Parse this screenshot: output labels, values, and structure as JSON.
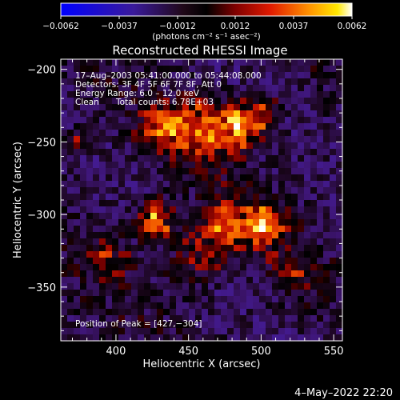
{
  "chart_data": {
    "type": "heatmap",
    "title": "Reconstructed RHESSI Image",
    "xlabel": "Heliocentric X (arcsec)",
    "ylabel": "Heliocentric Y (arcsec)",
    "xlim": [
      362,
      556
    ],
    "ylim": [
      -387,
      -193
    ],
    "x_ticks": [
      400,
      450,
      500,
      550
    ],
    "y_ticks": [
      -200,
      -250,
      -300,
      -350
    ],
    "x_tick_labels": [
      "400",
      "450",
      "500",
      "550"
    ],
    "y_tick_labels": [
      "−200",
      "−250",
      "−300",
      "−350"
    ],
    "colorbar": {
      "range": [
        -0.0062,
        0.0062
      ],
      "tick_labels": [
        "−0.0062",
        "−0.0037",
        "−0.0012",
        "0.0012",
        "0.0037",
        "0.0062"
      ],
      "unit_text": "(photons cm⁻² s⁻¹ asec⁻²)",
      "palette": [
        "#0000ff",
        "#4a1a8a",
        "#1a0a14",
        "#000000",
        "#8a0000",
        "#e01a00",
        "#ff8a00",
        "#ffe000",
        "#ffffff"
      ]
    },
    "sources": [
      {
        "x": 427,
        "y": -304,
        "amp": 0.0062,
        "sigma": 9
      },
      {
        "x": 478,
        "y": -307,
        "amp": 0.005,
        "sigma": 13
      },
      {
        "x": 503,
        "y": -307,
        "amp": 0.0058,
        "sigma": 9
      },
      {
        "x": 484,
        "y": -240,
        "amp": 0.006,
        "sigma": 11
      },
      {
        "x": 455,
        "y": -240,
        "amp": 0.0045,
        "sigma": 14
      },
      {
        "x": 430,
        "y": -241,
        "amp": 0.0045,
        "sigma": 10
      },
      {
        "x": 502,
        "y": -230,
        "amp": 0.0042,
        "sigma": 8
      },
      {
        "x": 455,
        "y": -330,
        "amp": 0.0035,
        "sigma": 12
      },
      {
        "x": 395,
        "y": -330,
        "amp": 0.003,
        "sigma": 10
      },
      {
        "x": 520,
        "y": -340,
        "amp": 0.003,
        "sigma": 10
      },
      {
        "x": 370,
        "y": -250,
        "amp": 0.003,
        "sigma": 6
      }
    ],
    "annotations": {
      "time_range": "17–Aug–2003 05:41:00.000 to 05:44:08.000",
      "detectors": "Detectors: 3F 4F 5F 6F 7F 8F, Att 0",
      "energy": "Energy Range: 6.0 – 12.0 keV",
      "clean": "Clean",
      "total_counts": "Total counts: 6.78E+03",
      "peak": "Position of Peak = [427,−304]"
    },
    "date_stamp": "4–May–2022 22:20"
  }
}
